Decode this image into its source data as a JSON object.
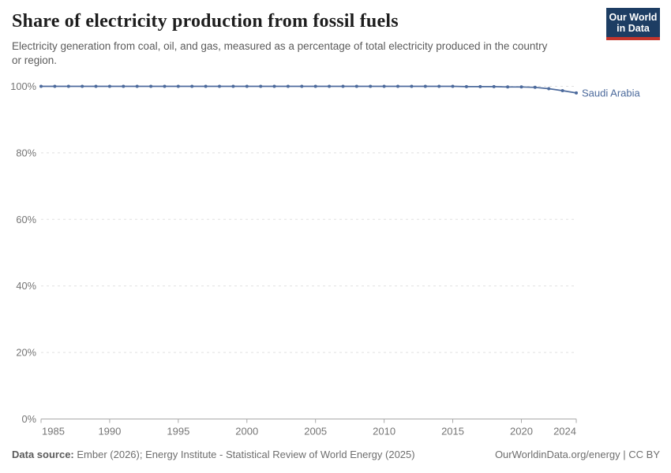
{
  "header": {
    "title": "Share of electricity production from fossil fuels",
    "subtitle": "Electricity generation from coal, oil, and gas, measured as a percentage of total electricity produced in the country or region.",
    "logo": {
      "line1": "Our World",
      "line2": "in Data"
    }
  },
  "chart_data": {
    "type": "line",
    "title": "Share of electricity production from fossil fuels",
    "x": [
      1985,
      1986,
      1987,
      1988,
      1989,
      1990,
      1991,
      1992,
      1993,
      1994,
      1995,
      1996,
      1997,
      1998,
      1999,
      2000,
      2001,
      2002,
      2003,
      2004,
      2005,
      2006,
      2007,
      2008,
      2009,
      2010,
      2011,
      2012,
      2013,
      2014,
      2015,
      2016,
      2017,
      2018,
      2019,
      2020,
      2021,
      2022,
      2023,
      2024
    ],
    "series": [
      {
        "name": "Saudi Arabia",
        "color": "#4c6a9c",
        "values": [
          100,
          100,
          100,
          100,
          100,
          100,
          100,
          100,
          100,
          100,
          100,
          100,
          100,
          100,
          100,
          100,
          100,
          100,
          100,
          100,
          100,
          100,
          100,
          100,
          100,
          100,
          100,
          100,
          100,
          100,
          100,
          99.9,
          99.9,
          99.9,
          99.8,
          99.8,
          99.7,
          99.3,
          98.7,
          98
        ]
      }
    ],
    "x_ticks": [
      1985,
      1990,
      1995,
      2000,
      2005,
      2010,
      2015,
      2020,
      2024
    ],
    "y_ticks": [
      0,
      20,
      40,
      60,
      80,
      100
    ],
    "y_tick_suffix": "%",
    "xlim": [
      1985,
      2024
    ],
    "ylim": [
      0,
      100
    ],
    "grid": "horizontal-dashed",
    "legend_position": "end-of-line-label",
    "end_label": "Saudi Arabia"
  },
  "footer": {
    "datasource_label": "Data source:",
    "datasource_text": "Ember (2026); Energy Institute - Statistical Review of World Energy (2025)",
    "credit": "OurWorldinData.org/energy | CC BY"
  },
  "colors": {
    "line": "#4c6a9c",
    "title": "#1d1d1d",
    "subtitle": "#5b5b5b",
    "axis_text": "#757575",
    "grid": "#e0e0e0",
    "axis": "#a9a9a9",
    "footer_text": "#6e6e6e",
    "logo_bg": "#1d3d63",
    "logo_accent": "#c4352c"
  }
}
